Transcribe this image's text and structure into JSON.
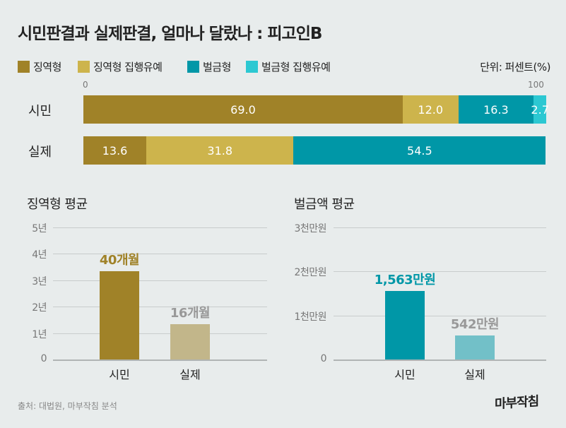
{
  "title": "시민판결과 실제판결, 얼마나 달랐나 : 피고인B",
  "unit": "단위: 퍼센트(%)",
  "source": "출처: 대법원, 마부작침 분석",
  "logo": "마부작침",
  "colors": {
    "background": "#e8ecec",
    "prison": "#a08228",
    "prison_suspended": "#cdb44c",
    "fine": "#0097a7",
    "fine_suspended": "#2cc8d2",
    "real_prison_bar": "#c2b68a",
    "real_fine_bar": "#72c0c8",
    "citizen_fine_label": "#0097a7",
    "citizen_prison_label": "#a08228",
    "real_label": "#999999"
  },
  "chart_data": [
    {
      "type": "bar",
      "stacked": true,
      "orientation": "horizontal",
      "xlim": [
        0,
        100
      ],
      "tick_labels": [
        "0",
        "100"
      ],
      "categories": [
        "시민",
        "실제"
      ],
      "series": [
        {
          "name": "징역형",
          "values": [
            69.0,
            13.6
          ],
          "labels": [
            "69.0",
            "13.6"
          ]
        },
        {
          "name": "징역형 집행유예",
          "values": [
            12.0,
            31.8
          ],
          "labels": [
            "12.0",
            "31.8"
          ]
        },
        {
          "name": "벌금형",
          "values": [
            16.3,
            54.5
          ],
          "labels": [
            "16.3",
            "54.5"
          ]
        },
        {
          "name": "벌금형 집행유예",
          "values": [
            2.7,
            0
          ],
          "labels": [
            "2.7",
            ""
          ]
        }
      ],
      "legend": "top-left"
    },
    {
      "type": "bar",
      "title": "징역형 평균",
      "categories": [
        "시민",
        "실제"
      ],
      "values_months": [
        40,
        16
      ],
      "labels": [
        "40개월",
        "16개월"
      ],
      "ylim_years": [
        0,
        5
      ],
      "yticks": [
        "0",
        "1년",
        "2년",
        "3년",
        "4년",
        "5년"
      ],
      "grid": true
    },
    {
      "type": "bar",
      "title": "벌금액 평균",
      "categories": [
        "시민",
        "실제"
      ],
      "values_manwon": [
        1563,
        542
      ],
      "labels": [
        "1,563만원",
        "542만원"
      ],
      "ylim_manwon": [
        0,
        3000
      ],
      "yticks": [
        "0",
        "1천만원",
        "2천만원",
        "3천만원"
      ],
      "grid": true
    }
  ]
}
